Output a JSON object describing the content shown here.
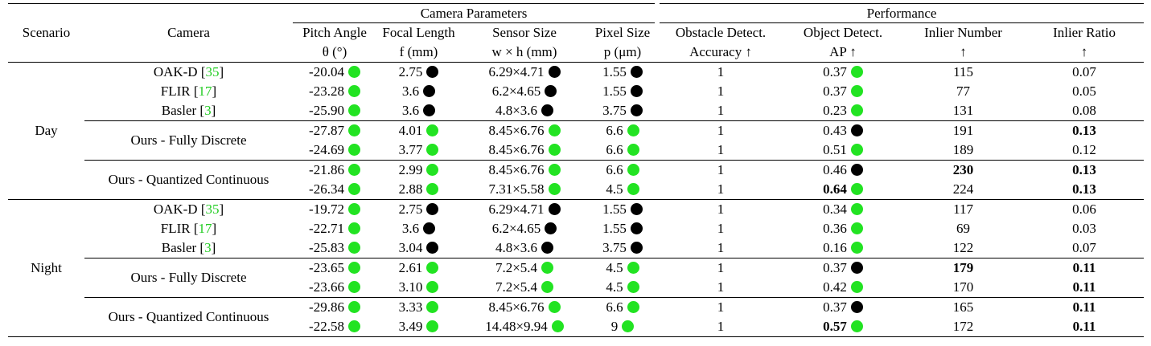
{
  "colors": {
    "green_dot": "#22e322",
    "black_dot": "#000000",
    "ref_link": "#22cc22"
  },
  "header": {
    "scenario": "Scenario",
    "camera": "Camera",
    "group_params": "Camera Parameters",
    "group_perf": "Performance",
    "pitch": {
      "l1": "Pitch Angle",
      "l2": "θ (°)"
    },
    "focal": {
      "l1": "Focal Length",
      "l2": "f (mm)"
    },
    "sensor": {
      "l1": "Sensor Size",
      "l2": "w × h (mm)"
    },
    "pixel": {
      "l1": "Pixel Size",
      "l2": "p (μm)"
    },
    "obstacle": {
      "l1": "Obstacle Detect.",
      "l2": "Accuracy ↑"
    },
    "object": {
      "l1": "Object Detect.",
      "l2": "AP ↑"
    },
    "inlier_n": {
      "l1": "Inlier Number",
      "l2": "↑"
    },
    "inlier_r": {
      "l1": "Inlier Ratio",
      "l2": "↑"
    }
  },
  "scenarios": {
    "day": "Day",
    "night": "Night"
  },
  "cameras": {
    "oak": {
      "name": "OAK-D [",
      "ref": "35",
      "close": "]"
    },
    "flir": {
      "name": "FLIR [",
      "ref": "17",
      "close": "]"
    },
    "basler": {
      "name": "Basler [",
      "ref": "3",
      "close": "]"
    },
    "fully": "Ours - Fully Discrete",
    "quant": "Ours - Quantized Continuous"
  },
  "day": [
    {
      "pitch": "-20.04",
      "pitch_dot": "green",
      "focal": "2.75",
      "focal_dot": "black",
      "sensor": "6.29×4.71",
      "sensor_dot": "black",
      "pixel": "1.55",
      "pixel_dot": "black",
      "obstacle": "1",
      "ap": "0.37",
      "ap_dot": "green",
      "inlier_n": "115",
      "inlier_r": "0.07"
    },
    {
      "pitch": "-23.28",
      "pitch_dot": "green",
      "focal": "3.6",
      "focal_dot": "black",
      "sensor": "6.2×4.65",
      "sensor_dot": "black",
      "pixel": "1.55",
      "pixel_dot": "black",
      "obstacle": "1",
      "ap": "0.37",
      "ap_dot": "green",
      "inlier_n": "77",
      "inlier_r": "0.05"
    },
    {
      "pitch": "-25.90",
      "pitch_dot": "green",
      "focal": "3.6",
      "focal_dot": "black",
      "sensor": "4.8×3.6",
      "sensor_dot": "black",
      "pixel": "3.75",
      "pixel_dot": "black",
      "obstacle": "1",
      "ap": "0.23",
      "ap_dot": "green",
      "inlier_n": "131",
      "inlier_r": "0.08"
    },
    {
      "pitch": "-27.87",
      "pitch_dot": "green",
      "focal": "4.01",
      "focal_dot": "green",
      "sensor": "8.45×6.76",
      "sensor_dot": "green",
      "pixel": "6.6",
      "pixel_dot": "green",
      "obstacle": "1",
      "ap": "0.43",
      "ap_dot": "black",
      "inlier_n": "191",
      "inlier_r": "0.13"
    },
    {
      "pitch": "-24.69",
      "pitch_dot": "green",
      "focal": "3.77",
      "focal_dot": "green",
      "sensor": "8.45×6.76",
      "sensor_dot": "green",
      "pixel": "6.6",
      "pixel_dot": "green",
      "obstacle": "1",
      "ap": "0.51",
      "ap_dot": "green",
      "inlier_n": "189",
      "inlier_r": "0.12"
    },
    {
      "pitch": "-21.86",
      "pitch_dot": "green",
      "focal": "2.99",
      "focal_dot": "green",
      "sensor": "8.45×6.76",
      "sensor_dot": "green",
      "pixel": "6.6",
      "pixel_dot": "green",
      "obstacle": "1",
      "ap": "0.46",
      "ap_dot": "black",
      "inlier_n": "230",
      "inlier_r": "0.13"
    },
    {
      "pitch": "-26.34",
      "pitch_dot": "green",
      "focal": "2.88",
      "focal_dot": "green",
      "sensor": "7.31×5.58",
      "sensor_dot": "green",
      "pixel": "4.5",
      "pixel_dot": "green",
      "obstacle": "1",
      "ap": "0.64",
      "ap_dot": "green",
      "inlier_n": "224",
      "inlier_r": "0.13"
    }
  ],
  "night": [
    {
      "pitch": "-19.72",
      "pitch_dot": "green",
      "focal": "2.75",
      "focal_dot": "black",
      "sensor": "6.29×4.71",
      "sensor_dot": "black",
      "pixel": "1.55",
      "pixel_dot": "black",
      "obstacle": "1",
      "ap": "0.34",
      "ap_dot": "green",
      "inlier_n": "117",
      "inlier_r": "0.06"
    },
    {
      "pitch": "-22.71",
      "pitch_dot": "green",
      "focal": "3.6",
      "focal_dot": "black",
      "sensor": "6.2×4.65",
      "sensor_dot": "black",
      "pixel": "1.55",
      "pixel_dot": "black",
      "obstacle": "1",
      "ap": "0.36",
      "ap_dot": "green",
      "inlier_n": "69",
      "inlier_r": "0.03"
    },
    {
      "pitch": "-25.83",
      "pitch_dot": "green",
      "focal": "3.04",
      "focal_dot": "black",
      "sensor": "4.8×3.6",
      "sensor_dot": "black",
      "pixel": "3.75",
      "pixel_dot": "black",
      "obstacle": "1",
      "ap": "0.16",
      "ap_dot": "green",
      "inlier_n": "122",
      "inlier_r": "0.07"
    },
    {
      "pitch": "-23.65",
      "pitch_dot": "green",
      "focal": "2.61",
      "focal_dot": "green",
      "sensor": "7.2×5.4",
      "sensor_dot": "green",
      "pixel": "4.5",
      "pixel_dot": "green",
      "obstacle": "1",
      "ap": "0.37",
      "ap_dot": "black",
      "inlier_n": "179",
      "inlier_r": "0.11"
    },
    {
      "pitch": "-23.66",
      "pitch_dot": "green",
      "focal": "3.10",
      "focal_dot": "green",
      "sensor": "7.2×5.4",
      "sensor_dot": "green",
      "pixel": "4.5",
      "pixel_dot": "green",
      "obstacle": "1",
      "ap": "0.42",
      "ap_dot": "green",
      "inlier_n": "170",
      "inlier_r": "0.11"
    },
    {
      "pitch": "-29.86",
      "pitch_dot": "green",
      "focal": "3.33",
      "focal_dot": "green",
      "sensor": "8.45×6.76",
      "sensor_dot": "green",
      "pixel": "6.6",
      "pixel_dot": "green",
      "obstacle": "1",
      "ap": "0.37",
      "ap_dot": "black",
      "inlier_n": "165",
      "inlier_r": "0.11"
    },
    {
      "pitch": "-22.58",
      "pitch_dot": "green",
      "focal": "3.49",
      "focal_dot": "green",
      "sensor": "14.48×9.94",
      "sensor_dot": "green",
      "pixel": "9",
      "pixel_dot": "green",
      "obstacle": "1",
      "ap": "0.57",
      "ap_dot": "green",
      "inlier_n": "172",
      "inlier_r": "0.11"
    }
  ]
}
